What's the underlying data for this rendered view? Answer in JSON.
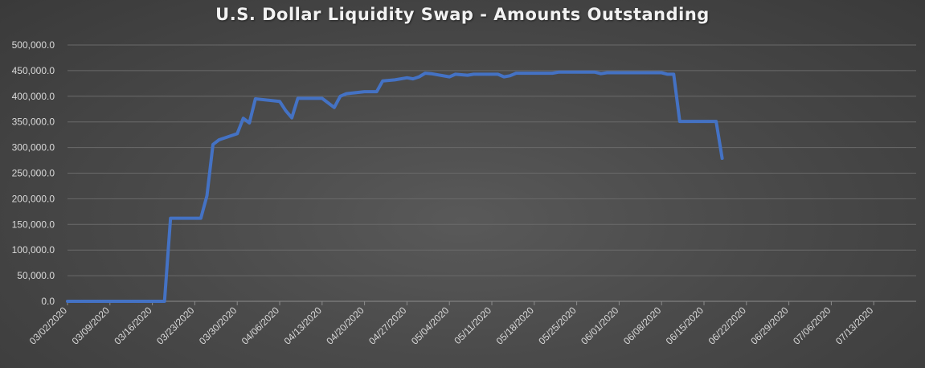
{
  "chart_data": {
    "type": "line",
    "title": "U.S. Dollar Liquidity Swap - Amounts Outstanding",
    "xlabel": "",
    "ylabel": "",
    "ylim": [
      0,
      500000
    ],
    "yticks": [
      "0.0",
      "50,000.0",
      "100,000.0",
      "150,000.0",
      "200,000.0",
      "250,000.0",
      "300,000.0",
      "350,000.0",
      "400,000.0",
      "450,000.0",
      "500,000.0"
    ],
    "xlim": [
      "2020-03-02",
      "2020-07-20"
    ],
    "xticks": [
      "03/02/2020",
      "03/09/2020",
      "03/16/2020",
      "03/23/2020",
      "03/30/2020",
      "04/06/2020",
      "04/13/2020",
      "04/20/2020",
      "04/27/2020",
      "05/04/2020",
      "05/11/2020",
      "05/18/2020",
      "05/25/2020",
      "06/01/2020",
      "06/08/2020",
      "06/15/2020",
      "06/22/2020",
      "06/29/2020",
      "07/06/2020",
      "07/13/2020"
    ],
    "grid": true,
    "line_color": "#4472c4",
    "series": [
      {
        "points": [
          [
            "2020-03-02",
            0
          ],
          [
            "2020-03-18",
            0
          ],
          [
            "2020-03-19",
            162000
          ],
          [
            "2020-03-24",
            162000
          ],
          [
            "2020-03-25",
            206000
          ],
          [
            "2020-03-26",
            306000
          ],
          [
            "2020-03-27",
            315000
          ],
          [
            "2020-03-30",
            327000
          ],
          [
            "2020-03-31",
            357000
          ],
          [
            "2020-04-01",
            348000
          ],
          [
            "2020-04-02",
            395000
          ],
          [
            "2020-04-06",
            390000
          ],
          [
            "2020-04-07",
            372000
          ],
          [
            "2020-04-08",
            358000
          ],
          [
            "2020-04-09",
            396000
          ],
          [
            "2020-04-13",
            396000
          ],
          [
            "2020-04-15",
            378000
          ],
          [
            "2020-04-16",
            400000
          ],
          [
            "2020-04-17",
            405000
          ],
          [
            "2020-04-20",
            409000
          ],
          [
            "2020-04-22",
            409000
          ],
          [
            "2020-04-23",
            430000
          ],
          [
            "2020-04-25",
            432000
          ],
          [
            "2020-04-27",
            436000
          ],
          [
            "2020-04-28",
            434000
          ],
          [
            "2020-04-29",
            438000
          ],
          [
            "2020-04-30",
            445000
          ],
          [
            "2020-05-01",
            444000
          ],
          [
            "2020-05-04",
            438000
          ],
          [
            "2020-05-05",
            443000
          ],
          [
            "2020-05-07",
            441000
          ],
          [
            "2020-05-08",
            443000
          ],
          [
            "2020-05-12",
            443000
          ],
          [
            "2020-05-13",
            438000
          ],
          [
            "2020-05-14",
            440000
          ],
          [
            "2020-05-15",
            445000
          ],
          [
            "2020-05-21",
            445000
          ],
          [
            "2020-05-22",
            447000
          ],
          [
            "2020-05-28",
            447000
          ],
          [
            "2020-05-29",
            444000
          ],
          [
            "2020-05-30",
            446000
          ],
          [
            "2020-06-08",
            446000
          ],
          [
            "2020-06-09",
            443000
          ],
          [
            "2020-06-10",
            443000
          ],
          [
            "2020-06-11",
            351000
          ],
          [
            "2020-06-17",
            351000
          ],
          [
            "2020-06-18",
            279000
          ]
        ]
      }
    ]
  }
}
